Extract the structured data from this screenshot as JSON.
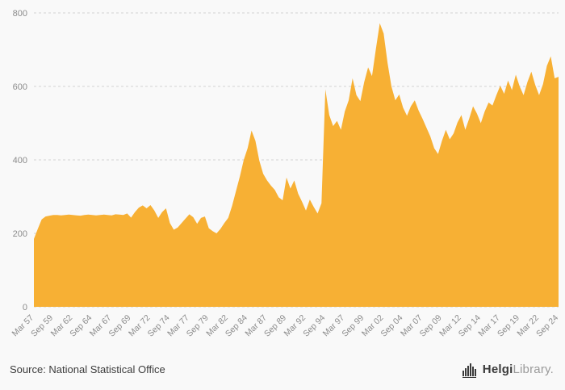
{
  "page": {
    "background": "#f9f9f9"
  },
  "chart_data": {
    "type": "area",
    "title": "",
    "xlabel": "",
    "ylabel": "",
    "x_start": "Mar 1957",
    "x_end": "Sep 2024",
    "frequency": "semiannual",
    "ylim": [
      0,
      800
    ],
    "y_ticks": [
      0,
      200,
      400,
      600,
      800
    ],
    "grid": "horizontal-dashed",
    "legend": "none",
    "area_color": "#F7B034",
    "grid_color": "#d4d4d4",
    "axis_text_color": "#8c8c8c",
    "tick_every": 5,
    "x_tick_labels": [
      "Mar 57",
      "Sep 59",
      "Mar 62",
      "Sep 64",
      "Mar 67",
      "Sep 69",
      "Mar 72",
      "Sep 74",
      "Mar 77",
      "Sep 79",
      "Mar 82",
      "Sep 84",
      "Mar 87",
      "Sep 89",
      "Mar 92",
      "Sep 94",
      "Mar 97",
      "Sep 99",
      "Mar 02",
      "Sep 04",
      "Mar 07",
      "Sep 09",
      "Mar 12",
      "Sep 14",
      "Mar 17",
      "Sep 19",
      "Mar 22",
      "Sep 24"
    ],
    "values": [
      185,
      212,
      238,
      246,
      248,
      250,
      250,
      249,
      250,
      251,
      250,
      249,
      248,
      250,
      251,
      250,
      249,
      250,
      251,
      250,
      249,
      252,
      251,
      250,
      254,
      243,
      258,
      270,
      276,
      268,
      277,
      262,
      242,
      258,
      268,
      228,
      210,
      216,
      228,
      240,
      252,
      244,
      226,
      242,
      246,
      214,
      206,
      200,
      212,
      228,
      242,
      275,
      315,
      355,
      400,
      432,
      480,
      452,
      398,
      362,
      344,
      330,
      318,
      298,
      290,
      352,
      322,
      344,
      308,
      286,
      262,
      292,
      272,
      254,
      282,
      592,
      522,
      492,
      506,
      482,
      532,
      562,
      622,
      576,
      560,
      612,
      652,
      628,
      702,
      772,
      744,
      664,
      600,
      562,
      578,
      542,
      520,
      546,
      562,
      534,
      512,
      488,
      464,
      432,
      416,
      452,
      482,
      456,
      472,
      502,
      522,
      482,
      512,
      546,
      526,
      500,
      532,
      556,
      548,
      576,
      602,
      580,
      616,
      590,
      632,
      600,
      576,
      612,
      640,
      604,
      576,
      606,
      656,
      682,
      622,
      626
    ]
  },
  "footer": {
    "source_label": "Source: National Statistical Office",
    "logo": {
      "icon": "helgi-bars-icon",
      "brand_bold": "Helgi",
      "brand_light": "Library."
    }
  }
}
